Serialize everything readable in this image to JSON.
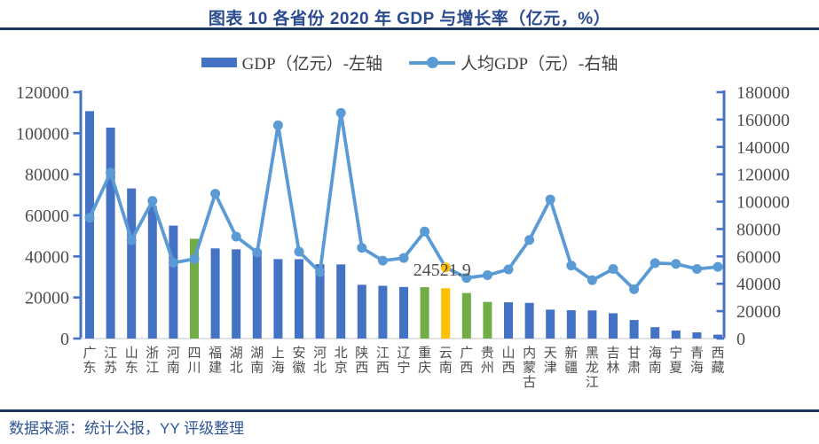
{
  "header": {
    "title": "图表 10 各省份 2020 年 GDP 与增长率（亿元，%）"
  },
  "legend": {
    "items": [
      {
        "label": "GDP（亿元）-左轴",
        "type": "bar",
        "color": "#4472C4"
      },
      {
        "label": "人均GDP（元）-右轴",
        "type": "line",
        "color": "#5B9BD5"
      }
    ]
  },
  "footer": {
    "source": "数据来源：统计公报，YY 评级整理"
  },
  "theme": {
    "title_color": "#2B4B8F",
    "divider_color": "#17375E",
    "source_color": "#2E5496",
    "axis_line_color": "#4472C4",
    "baseline_color": "#D9D9D9",
    "text_color": "#4D4D4D"
  },
  "chart_data": {
    "type": "bar",
    "title": "图表 10 各省份 2020 年 GDP 与增长率（亿元，%）",
    "grid": false,
    "legend_position": "top",
    "categories": [
      "广东",
      "江苏",
      "山东",
      "浙江",
      "河南",
      "四川",
      "福建",
      "湖北",
      "湖南",
      "上海",
      "安徽",
      "河北",
      "北京",
      "陕西",
      "江西",
      "辽宁",
      "重庆",
      "云南",
      "广西",
      "贵州",
      "山西",
      "内蒙古",
      "天津",
      "新疆",
      "黑龙江",
      "吉林",
      "甘肃",
      "海南",
      "宁夏",
      "青海",
      "西藏"
    ],
    "series": [
      {
        "name": "GDP（亿元）-左轴",
        "type": "bar",
        "axis": "left",
        "color": "#4472C4",
        "values": [
          110760.9,
          102719.0,
          73129.0,
          64613.3,
          54997.1,
          48598.8,
          43903.9,
          43443.5,
          41781.5,
          38700.6,
          38680.6,
          36206.9,
          36102.6,
          26181.9,
          25691.5,
          25115.0,
          25002.8,
          24521.9,
          22156.7,
          17826.6,
          17651.9,
          17360.0,
          14083.7,
          13797.6,
          13698.5,
          12311.3,
          9016.7,
          5532.4,
          3920.5,
          3005.9,
          1902.7
        ],
        "highlight_bars": [
          {
            "category": "四川",
            "color": "#70AD47"
          },
          {
            "category": "重庆",
            "color": "#70AD47"
          },
          {
            "category": "云南",
            "color": "#FFC000"
          },
          {
            "category": "广西",
            "color": "#70AD47"
          },
          {
            "category": "贵州",
            "color": "#70AD47"
          }
        ]
      },
      {
        "name": "人均GDP（元）-右轴",
        "type": "line",
        "axis": "right",
        "color": "#5B9BD5",
        "marker": "circle",
        "values": [
          88210,
          121231,
          71826,
          100620,
          55337,
          58126,
          105818,
          74440,
          62900,
          155768,
          63426,
          48564,
          164889,
          66308,
          56871,
          58872,
          78170,
          51975,
          44309,
          46267,
          50528,
          72062,
          101614,
          53371,
          42635,
          50800,
          35995,
          55131,
          54528,
          50819,
          52345
        ],
        "highlight_markers": [
          {
            "category": "云南",
            "color": "#FFC000"
          }
        ]
      }
    ],
    "axes": {
      "left": {
        "min": 0,
        "max": 120000,
        "step": 20000
      },
      "right": {
        "min": 0,
        "max": 180000,
        "step": 20000
      }
    },
    "data_labels": [
      {
        "category": "云南",
        "text": "24521.9"
      }
    ]
  }
}
